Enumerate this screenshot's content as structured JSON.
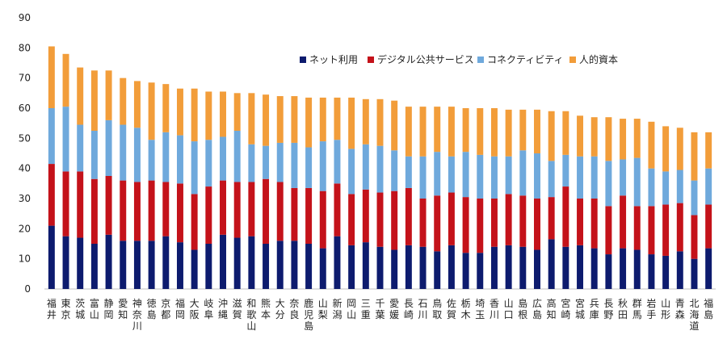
{
  "chart_data": {
    "type": "bar",
    "stacked": true,
    "orientation": "vertical",
    "title": "",
    "xlabel": "",
    "ylabel": "",
    "ylim": [
      0,
      90
    ],
    "yticks": [
      0,
      10,
      20,
      30,
      40,
      50,
      60,
      70,
      80,
      90
    ],
    "grid": false,
    "legend_position": "top-right",
    "categories": [
      "福井",
      "東京",
      "茨城",
      "富山",
      "静岡",
      "愛知",
      "神奈川",
      "徳島",
      "京都",
      "福岡",
      "大阪",
      "岐阜",
      "沖縄",
      "滋賀",
      "和歌山",
      "熊本",
      "大分",
      "奈良",
      "鹿児島",
      "山梨",
      "新潟",
      "岡山",
      "三重",
      "千葉",
      "愛媛",
      "長崎",
      "石川",
      "鳥取",
      "佐賀",
      "栃木",
      "埼玉",
      "香川",
      "山口",
      "島根",
      "広島",
      "高知",
      "宮崎",
      "宮城",
      "兵庫",
      "長野",
      "秋田",
      "群馬",
      "岩手",
      "山形",
      "青森",
      "北海道",
      "福島"
    ],
    "series": [
      {
        "name": "ネット利用",
        "color": "#0d1b6e",
        "values": [
          21,
          17.5,
          17,
          15,
          18,
          16,
          16,
          16,
          17.5,
          15.5,
          13,
          15,
          18,
          17,
          17.5,
          15,
          16,
          16,
          15,
          13.5,
          17.5,
          14.5,
          15.5,
          14,
          13,
          14.5,
          14,
          12.5,
          14.5,
          12,
          12,
          14,
          14.5,
          14,
          13,
          16.5,
          14,
          14.5,
          13.5,
          11.5,
          13.5,
          13,
          11.5,
          11,
          12.5,
          10,
          13.5
        ]
      },
      {
        "name": "デジタル公共サービス",
        "color": "#c4121a",
        "values": [
          20.5,
          21.5,
          22,
          21.5,
          19.5,
          20,
          19.5,
          20,
          18,
          19.5,
          18.5,
          19,
          18,
          18.5,
          18,
          21.5,
          19.5,
          17.5,
          18.5,
          19,
          17.5,
          17,
          17.5,
          18,
          19.5,
          19,
          16,
          18.5,
          17.5,
          18.5,
          18,
          16,
          17,
          17,
          17,
          14,
          20,
          15.5,
          16.5,
          16,
          17.5,
          14.5,
          16,
          17,
          16,
          14.5,
          14.5
        ]
      },
      {
        "name": "コネクティビティ",
        "color": "#6fa9dc",
        "values": [
          18.5,
          21.5,
          15.5,
          16,
          18.5,
          18.5,
          18,
          13.5,
          16.5,
          16,
          17.5,
          15.5,
          14.5,
          17,
          12.5,
          11,
          13,
          15,
          13.5,
          16.5,
          14.5,
          15,
          15,
          15.5,
          13.5,
          10.5,
          14,
          14.5,
          12,
          15,
          14.5,
          14,
          12.5,
          15,
          15,
          12,
          10.5,
          14,
          14,
          15,
          12,
          16,
          12.5,
          11,
          11,
          11.5,
          12
        ]
      },
      {
        "name": "人的資本",
        "color": "#f29d3a",
        "values": [
          20.5,
          17.5,
          19,
          20,
          16.5,
          15.5,
          15.5,
          19,
          16,
          15.5,
          17.5,
          16,
          15,
          12.5,
          17,
          17,
          15.5,
          15.5,
          16.5,
          14.5,
          14,
          17,
          15,
          15.5,
          16.5,
          16.5,
          16.5,
          15,
          16.5,
          14.5,
          15.5,
          16,
          15.5,
          13.5,
          14.5,
          16.5,
          14.5,
          13.5,
          13,
          14.5,
          13.5,
          13,
          15.5,
          15,
          14,
          16,
          12
        ]
      }
    ]
  }
}
